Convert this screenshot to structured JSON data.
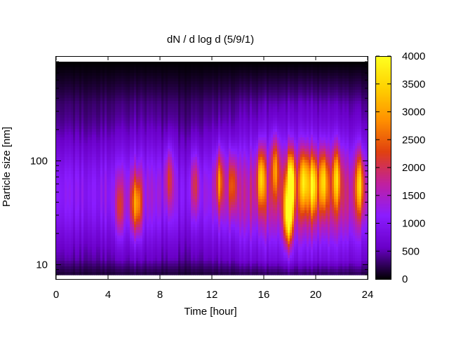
{
  "chart_data": {
    "type": "heatmap",
    "title": "dN / d log d (5/9/1)",
    "xlabel": "Time [hour]",
    "ylabel": "Particle size [nm]",
    "xlim": [
      0,
      24
    ],
    "ylim_nm": [
      8,
      900
    ],
    "yscale": "log",
    "x_ticks": [
      0,
      4,
      8,
      12,
      16,
      20,
      24
    ],
    "x_tick_labels": [
      "0",
      "4",
      "8",
      "12",
      "16",
      "20",
      "24"
    ],
    "y_ticks": [
      10,
      100
    ],
    "y_tick_labels": [
      "10",
      "100"
    ],
    "colorbar": {
      "range": [
        0,
        4000
      ],
      "ticks": [
        0,
        500,
        1000,
        1500,
        2000,
        2500,
        3000,
        3500,
        4000
      ],
      "tick_labels": [
        "0",
        "500",
        "1000",
        "1500",
        "2000",
        "2500",
        "3000",
        "3500",
        "4000"
      ],
      "palette": [
        "#000000",
        "#6a00c8",
        "#8a1cff",
        "#c020a0",
        "#e04010",
        "#ff9000",
        "#ffd000",
        "#ffff20"
      ]
    },
    "background_level": 900,
    "time_intensity": [
      [
        0,
        850
      ],
      [
        2,
        900
      ],
      [
        4,
        1050
      ],
      [
        6,
        1150
      ],
      [
        8,
        1000
      ],
      [
        10,
        850
      ],
      [
        12,
        1100
      ],
      [
        14,
        1300
      ],
      [
        16,
        1550
      ],
      [
        18,
        1750
      ],
      [
        20,
        1650
      ],
      [
        22,
        1500
      ],
      [
        24,
        1400
      ]
    ],
    "peaks_nm": [
      {
        "t": 4.9,
        "d": 35,
        "v": 1600
      },
      {
        "t": 5.9,
        "d": 38,
        "v": 1500
      },
      {
        "t": 6.3,
        "d": 38,
        "v": 2200
      },
      {
        "t": 8.7,
        "d": 70,
        "v": 1550
      },
      {
        "t": 10.7,
        "d": 60,
        "v": 1450
      },
      {
        "t": 12.6,
        "d": 65,
        "v": 2200
      },
      {
        "t": 13.6,
        "d": 60,
        "v": 2000
      },
      {
        "t": 15.8,
        "d": 70,
        "v": 2800
      },
      {
        "t": 16.9,
        "d": 90,
        "v": 2400
      },
      {
        "t": 17.9,
        "d": 30,
        "v": 3900
      },
      {
        "t": 18.1,
        "d": 65,
        "v": 3500
      },
      {
        "t": 19.1,
        "d": 65,
        "v": 2950
      },
      {
        "t": 19.8,
        "d": 60,
        "v": 3000
      },
      {
        "t": 20.6,
        "d": 65,
        "v": 2800
      },
      {
        "t": 21.6,
        "d": 70,
        "v": 2600
      },
      {
        "t": 23.4,
        "d": 60,
        "v": 2600
      }
    ],
    "grid": false,
    "legend": "colorbar-right"
  }
}
